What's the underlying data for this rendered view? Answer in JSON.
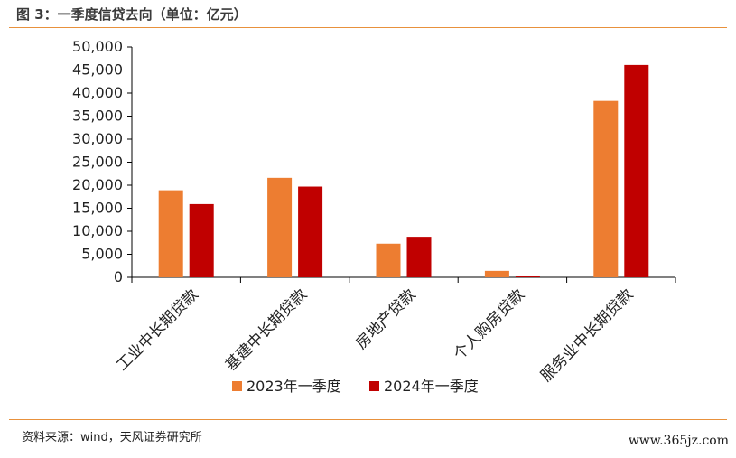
{
  "title": "图 3：一季度信贷去向（单位：亿元）",
  "source": "资料来源：wind，天风证券研究所",
  "watermark": "www.365jz.com",
  "colors": {
    "series_2023": "#ed7d31",
    "series_2024": "#c00000",
    "rule": "#e8913c",
    "axis": "#000000"
  },
  "chart_data": {
    "type": "bar",
    "title": "一季度信贷去向（单位：亿元）",
    "xlabel": "",
    "ylabel": "",
    "ylim": [
      0,
      50000
    ],
    "yticks": [
      0,
      5000,
      10000,
      15000,
      20000,
      25000,
      30000,
      35000,
      40000,
      45000,
      50000
    ],
    "ytick_labels": [
      "0",
      "5,000",
      "10,000",
      "15,000",
      "20,000",
      "25,000",
      "30,000",
      "35,000",
      "40,000",
      "45,000",
      "50,000"
    ],
    "categories": [
      "工业中长期贷款",
      "基建中长期贷款",
      "房地产贷款",
      "个人购房贷款",
      "服务业中长期贷款"
    ],
    "series": [
      {
        "name": "2023年一季度",
        "values": [
          18900,
          21600,
          7300,
          1400,
          38300
        ]
      },
      {
        "name": "2024年一季度",
        "values": [
          15900,
          19700,
          8800,
          300,
          46100
        ]
      }
    ],
    "legend": "bottom-center",
    "grid": false
  }
}
